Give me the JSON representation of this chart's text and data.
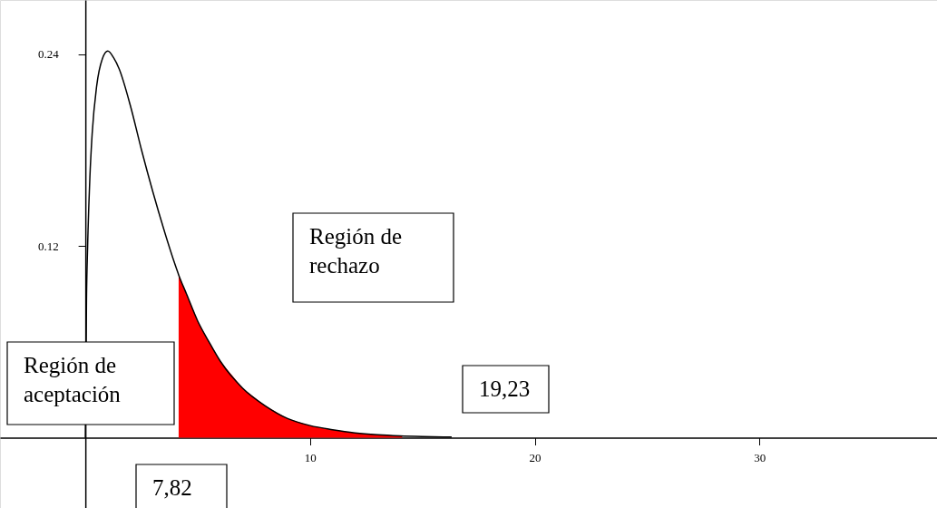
{
  "chart_data": {
    "type": "line",
    "xlim": [
      -3.8,
      37.9
    ],
    "ylim": [
      -0.044,
      0.274
    ],
    "xticks": [
      10,
      20,
      30
    ],
    "yticks": [
      0.12,
      0.24
    ],
    "grid": false,
    "marker": "none",
    "line_style": "solid",
    "series": [
      {
        "type": "area",
        "color": "#ff0000",
        "x": [
          4.15,
          4.5,
          5,
          5.5,
          6,
          7,
          8,
          9,
          10,
          11,
          12,
          13,
          14.1
        ],
        "values": [
          0.102,
          0.09,
          0.073,
          0.06,
          0.048,
          0.031,
          0.02,
          0.012,
          0.0076,
          0.005,
          0.003,
          0.0018,
          0.0011
        ]
      },
      {
        "color": "#000000",
        "x": [
          0,
          0.05,
          0.1,
          0.2,
          0.3,
          0.5,
          0.75,
          1,
          1.25,
          1.5,
          2,
          2.5,
          3,
          3.5,
          4,
          4.15,
          4.5,
          5,
          5.5,
          6,
          7,
          8,
          9,
          10,
          11,
          12,
          13,
          14,
          15,
          16.3
        ],
        "values": [
          0,
          0.087,
          0.12,
          0.163,
          0.19,
          0.22,
          0.237,
          0.242,
          0.238,
          0.231,
          0.208,
          0.18,
          0.154,
          0.13,
          0.108,
          0.102,
          0.09,
          0.073,
          0.06,
          0.048,
          0.031,
          0.02,
          0.012,
          0.0076,
          0.005,
          0.003,
          0.0018,
          0.0011,
          0.0007,
          0.0004
        ]
      }
    ],
    "annotations": [
      "Región de rechazo",
      "Región de aceptación",
      "7,82",
      "19,23"
    ]
  }
}
